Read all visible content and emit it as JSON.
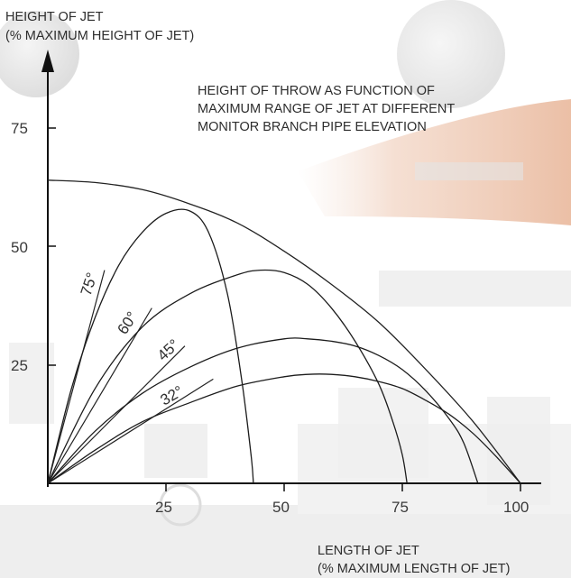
{
  "chart_data": {
    "type": "line",
    "title_lines": [
      "HEIGHT OF THROW AS FUNCTION OF",
      "MAXIMUM RANGE OF JET AT DIFFERENT",
      "MONITOR BRANCH PIPE ELEVATION"
    ],
    "ylabel_lines": [
      "HEIGHT OF JET",
      "(% MAXIMUM HEIGHT OF JET)"
    ],
    "xlabel_lines": [
      "LENGTH OF JET",
      "(% MAXIMUM LENGTH OF JET)"
    ],
    "xlim": [
      0,
      100
    ],
    "ylim": [
      0,
      75
    ],
    "x_ticks": [
      25,
      50,
      75,
      100
    ],
    "y_ticks": [
      25,
      50,
      75
    ],
    "x_tick_labels": [
      "25",
      "50",
      "75",
      "100"
    ],
    "y_tick_labels": [
      "25",
      "50",
      "75"
    ],
    "grid": false,
    "series": [
      {
        "name": "75°",
        "x": [
          0,
          5,
          10,
          15,
          20,
          25,
          30,
          34,
          38,
          41,
          43,
          43.5
        ],
        "y": [
          0,
          20,
          35,
          46,
          53,
          57,
          57.5,
          53,
          40,
          22,
          6,
          0
        ]
      },
      {
        "name": "60°",
        "x": [
          0,
          10,
          20,
          30,
          40,
          45,
          50,
          55,
          60,
          65,
          70,
          73,
          75,
          76
        ],
        "y": [
          0,
          20,
          33,
          40,
          44,
          45,
          44.5,
          42,
          37,
          30,
          21,
          13,
          6,
          0
        ]
      },
      {
        "name": "45°",
        "x": [
          0,
          10,
          20,
          30,
          40,
          50,
          55,
          60,
          65,
          70,
          75,
          80,
          85,
          88,
          91
        ],
        "y": [
          0,
          11,
          19,
          24.5,
          28.5,
          30.5,
          30.5,
          30,
          29,
          27,
          24,
          19.5,
          13.5,
          8.5,
          0
        ]
      },
      {
        "name": "32°",
        "x": [
          0,
          10,
          20,
          30,
          40,
          50,
          55,
          60,
          65,
          70,
          75,
          80,
          85,
          90,
          95,
          100
        ],
        "y": [
          0,
          7,
          13,
          17,
          20.5,
          22.5,
          23,
          23,
          22.5,
          21.5,
          20,
          17.5,
          14.5,
          10.5,
          5.5,
          0
        ]
      }
    ],
    "envelope": {
      "x": [
        0,
        10,
        20,
        30,
        40,
        50,
        60,
        70,
        80,
        90,
        100
      ],
      "y": [
        64,
        63.5,
        62,
        59,
        55,
        49,
        42,
        34,
        24,
        13,
        0
      ]
    },
    "tangent_lines": [
      {
        "label": "75°",
        "x": [
          0,
          12
        ],
        "y": [
          0,
          45
        ]
      },
      {
        "label": "60°",
        "x": [
          0,
          22
        ],
        "y": [
          0,
          37
        ]
      },
      {
        "label": "45°",
        "x": [
          0,
          29
        ],
        "y": [
          0,
          29
        ]
      },
      {
        "label": "32°",
        "x": [
          0,
          35
        ],
        "y": [
          0,
          22
        ]
      }
    ]
  }
}
